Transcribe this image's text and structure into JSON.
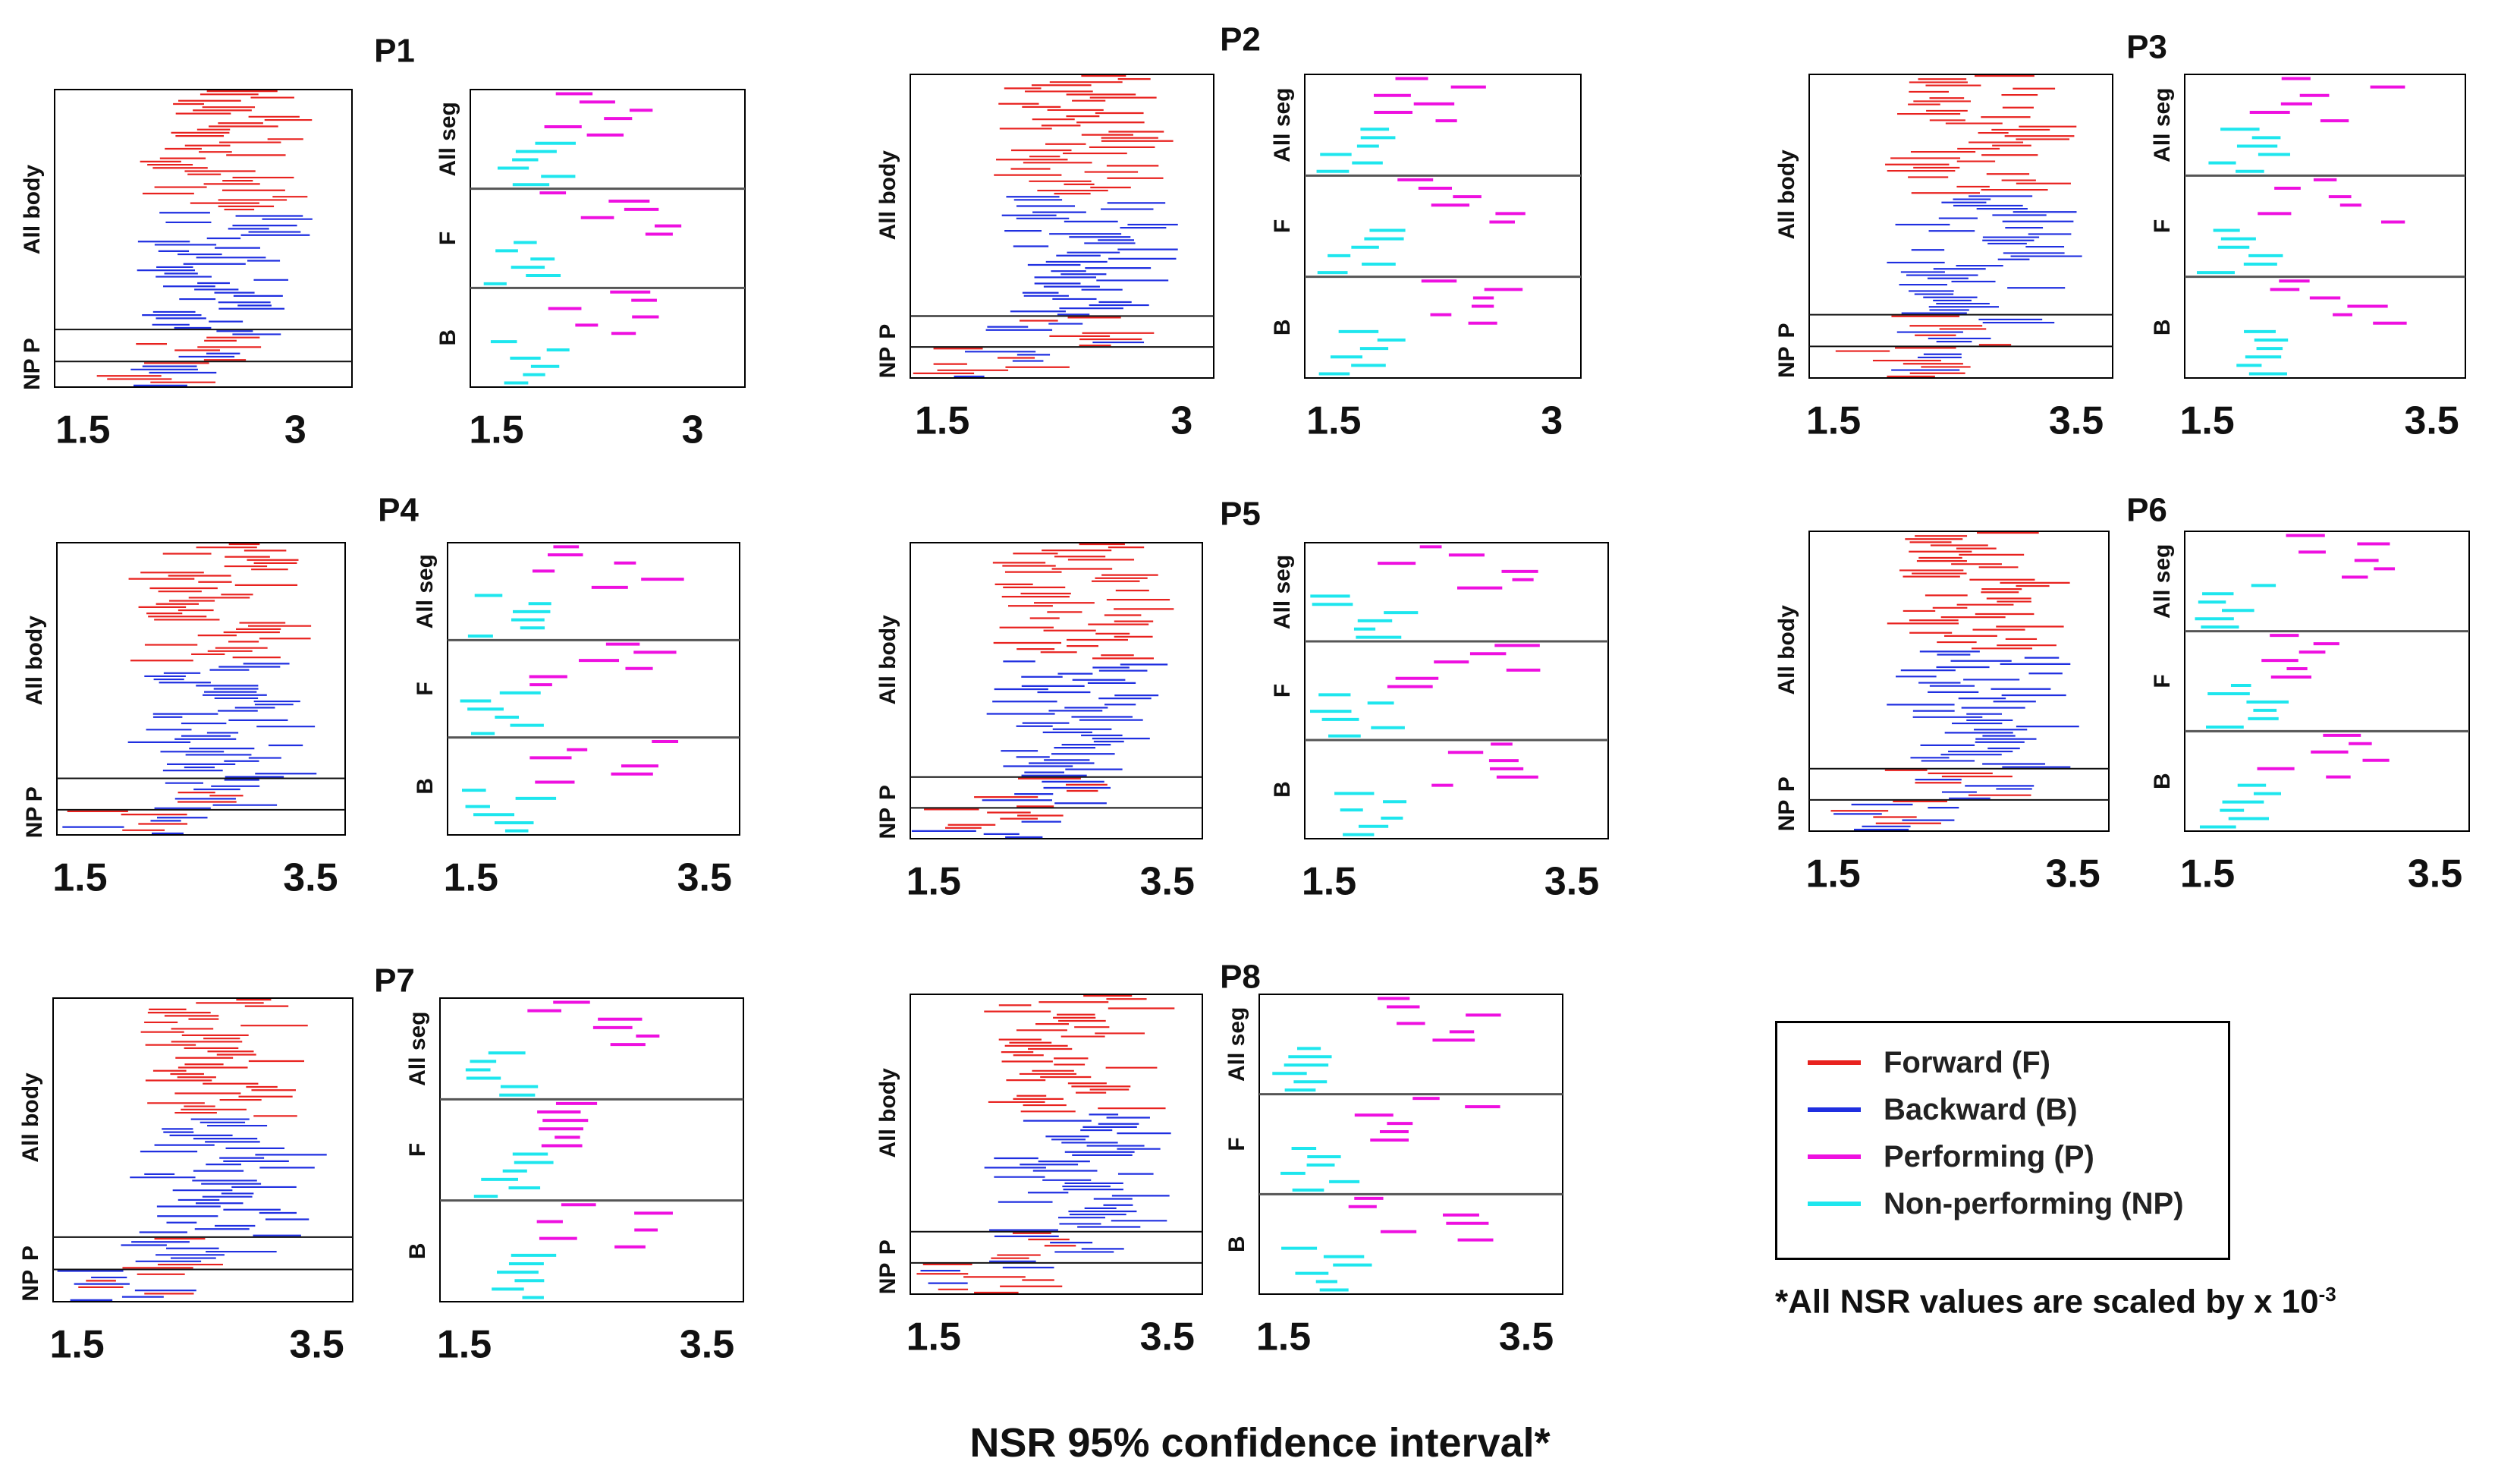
{
  "figure_caption": "NSR 95% confidence interval*",
  "footnote": {
    "text": "*All NSR values are scaled by x 10",
    "exponent": "-3"
  },
  "legend": [
    {
      "label": "Forward (F)",
      "color": "#e8221f"
    },
    {
      "label": "Backward (B)",
      "color": "#1f2fe0"
    },
    {
      "label": "Performing (P)",
      "color": "#ee10e0"
    },
    {
      "label": "Non-performing (NP)",
      "color": "#1ee6ee"
    }
  ],
  "chart_data": [
    {
      "panel": "P1",
      "type": "interval",
      "left": {
        "xlim": [
          1.3,
          3.4
        ],
        "xticks": [
          1.5,
          3
        ],
        "groups": [
          "All body",
          "P",
          "NP"
        ],
        "group_counts": [
          75,
          10,
          8
        ]
      },
      "right": {
        "xlim": [
          1.3,
          3.4
        ],
        "xticks": [
          1.5,
          3
        ],
        "groups": [
          "All seg",
          "F",
          "B"
        ],
        "group_counts": [
          12,
          12,
          12
        ]
      }
    },
    {
      "panel": "P2",
      "type": "interval",
      "left": {
        "xlim": [
          1.3,
          3.2
        ],
        "xticks": [
          1.5,
          3
        ],
        "groups": [
          "All body",
          "P",
          "NP"
        ],
        "group_counts": [
          78,
          10,
          10
        ]
      },
      "right": {
        "xlim": [
          1.3,
          3.2
        ],
        "xticks": [
          1.5,
          3
        ],
        "groups": [
          "All seg",
          "F",
          "B"
        ],
        "group_counts": [
          12,
          12,
          12
        ]
      }
    },
    {
      "panel": "P3",
      "type": "interval",
      "left": {
        "xlim": [
          1.3,
          3.8
        ],
        "xticks": [
          1.5,
          3.5
        ],
        "groups": [
          "All body",
          "P",
          "NP"
        ],
        "group_counts": [
          76,
          10,
          10
        ]
      },
      "right": {
        "xlim": [
          1.3,
          3.8
        ],
        "xticks": [
          1.5,
          3.5
        ],
        "groups": [
          "All seg",
          "F",
          "B"
        ],
        "group_counts": [
          12,
          12,
          12
        ]
      }
    },
    {
      "panel": "P4",
      "type": "interval",
      "left": {
        "xlim": [
          1.3,
          3.8
        ],
        "xticks": [
          1.5,
          3.5
        ],
        "groups": [
          "All body",
          "P",
          "NP"
        ],
        "group_counts": [
          75,
          10,
          8
        ]
      },
      "right": {
        "xlim": [
          1.3,
          3.8
        ],
        "xticks": [
          1.5,
          3.5
        ],
        "groups": [
          "All seg",
          "F",
          "B"
        ],
        "group_counts": [
          12,
          12,
          12
        ]
      }
    },
    {
      "panel": "P5",
      "type": "interval",
      "left": {
        "xlim": [
          1.3,
          3.8
        ],
        "xticks": [
          1.5,
          3.5
        ],
        "groups": [
          "All body",
          "P",
          "NP"
        ],
        "group_counts": [
          76,
          10,
          10
        ]
      },
      "right": {
        "xlim": [
          1.3,
          3.8
        ],
        "xticks": [
          1.5,
          3.5
        ],
        "groups": [
          "All seg",
          "F",
          "B"
        ],
        "group_counts": [
          12,
          12,
          12
        ]
      }
    },
    {
      "panel": "P6",
      "type": "interval",
      "left": {
        "xlim": [
          1.3,
          3.8
        ],
        "xticks": [
          1.5,
          3.5
        ],
        "groups": [
          "All body",
          "P",
          "NP"
        ],
        "group_counts": [
          76,
          10,
          10
        ]
      },
      "right": {
        "xlim": [
          1.3,
          3.8
        ],
        "xticks": [
          1.5,
          3.5
        ],
        "groups": [
          "All seg",
          "F",
          "B"
        ],
        "group_counts": [
          12,
          12,
          12
        ]
      }
    },
    {
      "panel": "P7",
      "type": "interval",
      "left": {
        "xlim": [
          1.3,
          3.8
        ],
        "xticks": [
          1.5,
          3.5
        ],
        "groups": [
          "All body",
          "P",
          "NP"
        ],
        "group_counts": [
          74,
          10,
          10
        ]
      },
      "right": {
        "xlim": [
          1.3,
          3.8
        ],
        "xticks": [
          1.5,
          3.5
        ],
        "groups": [
          "All seg",
          "F",
          "B"
        ],
        "group_counts": [
          12,
          12,
          12
        ]
      }
    },
    {
      "panel": "P8",
      "type": "interval",
      "left": {
        "xlim": [
          1.3,
          3.8
        ],
        "xticks": [
          1.5,
          3.5
        ],
        "groups": [
          "All body",
          "P",
          "NP"
        ],
        "group_counts": [
          76,
          10,
          10
        ]
      },
      "right": {
        "xlim": [
          1.3,
          3.8
        ],
        "xticks": [
          1.5,
          3.5
        ],
        "groups": [
          "All seg",
          "F",
          "B"
        ],
        "group_counts": [
          12,
          12,
          12
        ]
      }
    }
  ]
}
